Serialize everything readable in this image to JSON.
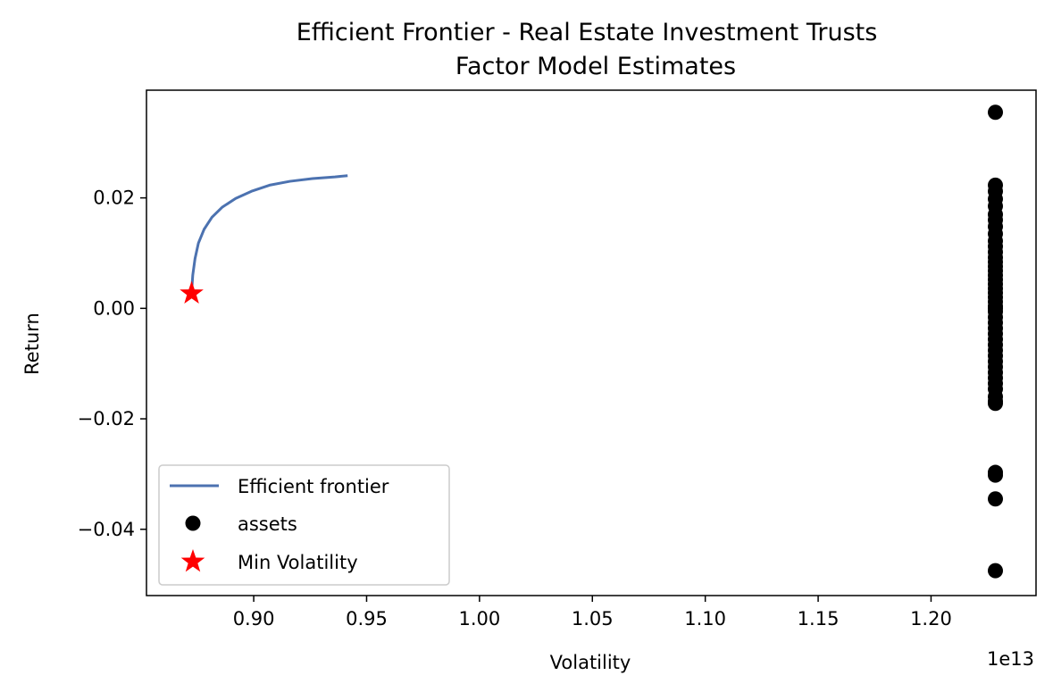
{
  "chart_data": {
    "type": "line",
    "title": "Efficient Frontier - Real Estate Investment Trusts",
    "subtitle": "Factor Model Estimates",
    "xlabel": "Volatility",
    "ylabel": "Return",
    "x_offset_label": "1e13",
    "x_scale": 10000000000000,
    "xlim": [
      0.8525,
      1.2465
    ],
    "ylim": [
      -0.052,
      0.0395
    ],
    "xticks": [
      0.9,
      0.95,
      1.0,
      1.05,
      1.1,
      1.15,
      1.2
    ],
    "xtick_labels": [
      "0.90",
      "0.95",
      "1.00",
      "1.05",
      "1.10",
      "1.15",
      "1.20"
    ],
    "yticks": [
      -0.04,
      -0.02,
      0.0,
      0.02
    ],
    "ytick_labels": [
      "−0.04",
      "−0.02",
      "0.00",
      "0.02"
    ],
    "grid": false,
    "legend_position": "lower-left",
    "series": [
      {
        "name": "Efficient frontier",
        "kind": "line",
        "color": "#4c72b0",
        "x": [
          0.8725,
          0.873,
          0.874,
          0.8755,
          0.878,
          0.8815,
          0.886,
          0.892,
          0.899,
          0.907,
          0.916,
          0.926,
          0.936,
          0.941
        ],
        "y": [
          0.003,
          0.006,
          0.009,
          0.0118,
          0.0143,
          0.0165,
          0.0183,
          0.0199,
          0.0212,
          0.0223,
          0.023,
          0.0235,
          0.0238,
          0.024
        ]
      },
      {
        "name": "assets",
        "kind": "scatter",
        "color": "#000000",
        "x": [
          1.2285,
          1.2285,
          1.2285,
          1.2285,
          1.2285,
          1.2285,
          1.2285,
          1.2285,
          1.2285,
          1.2285,
          1.2285,
          1.2285,
          1.2285,
          1.2285,
          1.2285,
          1.2285,
          1.2285,
          1.2285,
          1.2285,
          1.2285,
          1.2285,
          1.2285,
          1.2285,
          1.2285,
          1.2285,
          1.2285,
          1.2285,
          1.2285,
          1.2285,
          1.2285,
          1.2285,
          1.2285,
          1.2285,
          1.2285,
          1.2285,
          1.2285,
          1.2285,
          1.2285,
          1.2285,
          1.2285,
          1.2285,
          1.2285,
          1.2285,
          1.2285,
          1.2285,
          1.2285,
          1.2285
        ],
        "y": [
          0.0355,
          0.0223,
          0.0212,
          0.0198,
          0.0185,
          0.017,
          0.016,
          0.0148,
          0.0135,
          0.0122,
          0.0112,
          0.0102,
          0.0092,
          0.0084,
          0.0076,
          0.0068,
          0.006,
          0.0052,
          0.0044,
          0.0036,
          0.0028,
          0.002,
          0.0012,
          0.0004,
          -0.0006,
          -0.0016,
          -0.0026,
          -0.0036,
          -0.0046,
          -0.0056,
          -0.0066,
          -0.0076,
          -0.0086,
          -0.0096,
          -0.0106,
          -0.0116,
          -0.0126,
          -0.0136,
          -0.0146,
          -0.016,
          -0.0168,
          -0.0172,
          -0.0297,
          -0.0302,
          -0.0345,
          -0.0475,
          0.0
        ]
      },
      {
        "name": "Min Volatility",
        "kind": "marker",
        "color": "#ff0000",
        "x": [
          0.8725
        ],
        "y": [
          0.0027
        ]
      }
    ]
  }
}
